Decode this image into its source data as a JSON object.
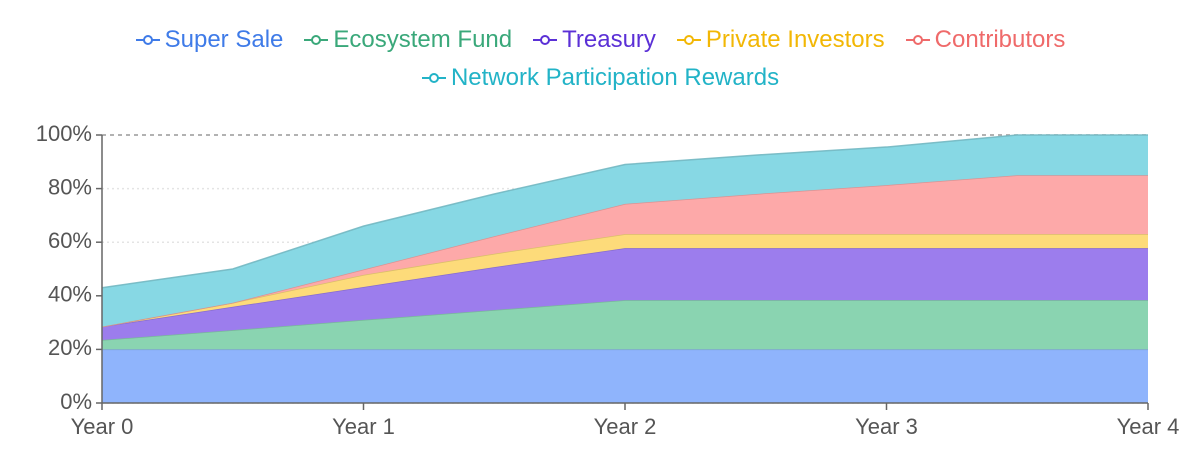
{
  "chart_data": {
    "type": "stacked-area",
    "x": [
      0,
      0.5,
      1,
      1.5,
      2,
      2.5,
      3,
      3.5,
      4
    ],
    "xlim": [
      0,
      4
    ],
    "xticks": [
      {
        "value": 0,
        "label": "Year 0"
      },
      {
        "value": 1,
        "label": "Year 1"
      },
      {
        "value": 2,
        "label": "Year 2"
      },
      {
        "value": 3,
        "label": "Year 3"
      },
      {
        "value": 4,
        "label": "Year 4"
      }
    ],
    "ylim": [
      0,
      100
    ],
    "yticks": [
      {
        "value": 0,
        "label": "0%"
      },
      {
        "value": 20,
        "label": "20%"
      },
      {
        "value": 40,
        "label": "40%"
      },
      {
        "value": 60,
        "label": "60%"
      },
      {
        "value": 80,
        "label": "80%"
      },
      {
        "value": 100,
        "label": "100%"
      }
    ],
    "grid": true,
    "series": [
      {
        "name": "Super Sale",
        "color": "#3f7be8",
        "fill": "#8fb4fc",
        "values": [
          20,
          20,
          20,
          20,
          20,
          20,
          20,
          20,
          20
        ]
      },
      {
        "name": "Ecosystem Fund",
        "color": "#3aa87a",
        "fill": "#8ad4b1",
        "values": [
          3.5,
          7.2,
          11,
          14.7,
          18.4,
          18.4,
          18.4,
          18.4,
          18.4
        ]
      },
      {
        "name": "Treasury",
        "color": "#5b30d6",
        "fill": "#9c7ded",
        "values": [
          5,
          8.7,
          12.3,
          16,
          19.4,
          19.4,
          19.4,
          19.4,
          19.4
        ]
      },
      {
        "name": "Private Investors",
        "color": "#f2b705",
        "fill": "#fddb7a",
        "values": [
          0,
          1.5,
          4.5,
          5,
          5.2,
          5.2,
          5.2,
          5.2,
          5.2
        ]
      },
      {
        "name": "Contributors",
        "color": "#ef6a6a",
        "fill": "#fda9a9",
        "values": [
          0,
          0,
          2,
          6.5,
          11.3,
          15,
          18.3,
          22,
          22
        ]
      },
      {
        "name": "Network Participation Rewards",
        "color": "#22b3c7",
        "fill": "#87d8e4",
        "values": [
          14.5,
          12.6,
          16.2,
          15.8,
          14.7,
          14.5,
          14.2,
          15,
          15
        ]
      }
    ]
  }
}
